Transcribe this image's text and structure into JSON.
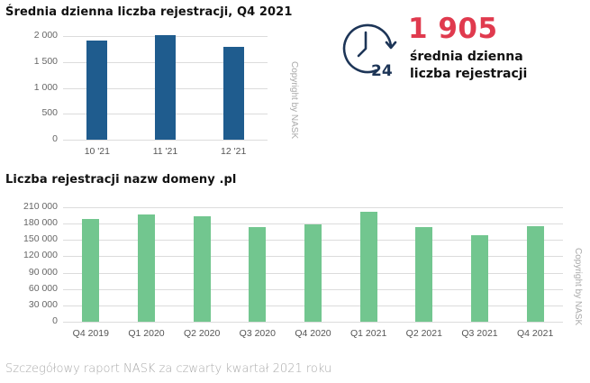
{
  "chart_data": [
    {
      "type": "bar",
      "title": "Średnia dzienna liczba rejestracji, Q4 2021",
      "categories": [
        "10 '21",
        "11 '21",
        "12 '21"
      ],
      "values": [
        1920,
        2010,
        1785
      ],
      "yticks": [
        "0",
        "500",
        "1 000",
        "1 500",
        "2 000"
      ],
      "ylim": [
        0,
        2000
      ],
      "xlabel": "",
      "ylabel": "",
      "color": "#1f5c8e",
      "grid": true,
      "annotation": "Copyright by NASK"
    },
    {
      "type": "bar",
      "title": "Liczba rejestracji nazw domeny .pl",
      "categories": [
        "Q4 2019",
        "Q1 2020",
        "Q2 2020",
        "Q3 2020",
        "Q4 2020",
        "Q1 2021",
        "Q2 2021",
        "Q3 2021",
        "Q4 2021"
      ],
      "values": [
        189000,
        196000,
        194000,
        174000,
        179000,
        202000,
        173000,
        159000,
        176000
      ],
      "yticks": [
        "0",
        "30 000",
        "60 000",
        "90 000",
        "120 000",
        "150 000",
        "180 000",
        "210 000"
      ],
      "ylim": [
        0,
        210000
      ],
      "xlabel": "",
      "ylabel": "",
      "color": "#72c68f",
      "grid": true,
      "annotation": "Copyright by NASK"
    }
  ],
  "kpi": {
    "icon": "clock-24-icon",
    "icon_label": "24",
    "value": "1 905",
    "label_line1": "średnia dzienna",
    "label_line2": "liczba rejestracji",
    "value_color": "#e03a4e",
    "icon_color": "#1d3557"
  },
  "chart1": {
    "title": "Średnia dzienna liczba rejestracji, Q4 2021",
    "copyright": "Copyright by NASK"
  },
  "chart2": {
    "title": "Liczba rejestracji nazw domeny .pl",
    "copyright": "Copyright by NASK"
  },
  "footer": "Szczegółowy raport NASK za czwarty kwartał 2021 roku"
}
